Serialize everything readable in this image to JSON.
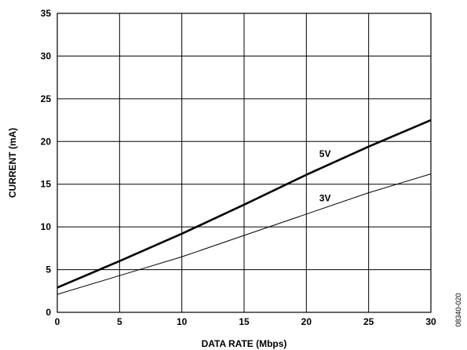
{
  "chart_data": {
    "type": "line",
    "xlabel": "DATA RATE (Mbps)",
    "ylabel": "CURRENT (mA)",
    "xlim": [
      0,
      30
    ],
    "ylim": [
      0,
      35
    ],
    "x_ticks": [
      0,
      5,
      10,
      15,
      20,
      25,
      30
    ],
    "y_ticks": [
      0,
      5,
      10,
      15,
      20,
      25,
      30,
      35
    ],
    "grid": true,
    "legend": "inline labels",
    "series": [
      {
        "name": "5V",
        "x": [
          0,
          5,
          10,
          15,
          20,
          25,
          30
        ],
        "y": [
          2.9,
          6.0,
          9.2,
          12.6,
          16.1,
          19.4,
          22.5
        ]
      },
      {
        "name": "3V",
        "x": [
          0,
          5,
          10,
          15,
          20,
          25,
          30
        ],
        "y": [
          2.1,
          4.3,
          6.5,
          9.0,
          11.5,
          14.0,
          16.2
        ]
      }
    ],
    "annotation": "08340-020"
  }
}
